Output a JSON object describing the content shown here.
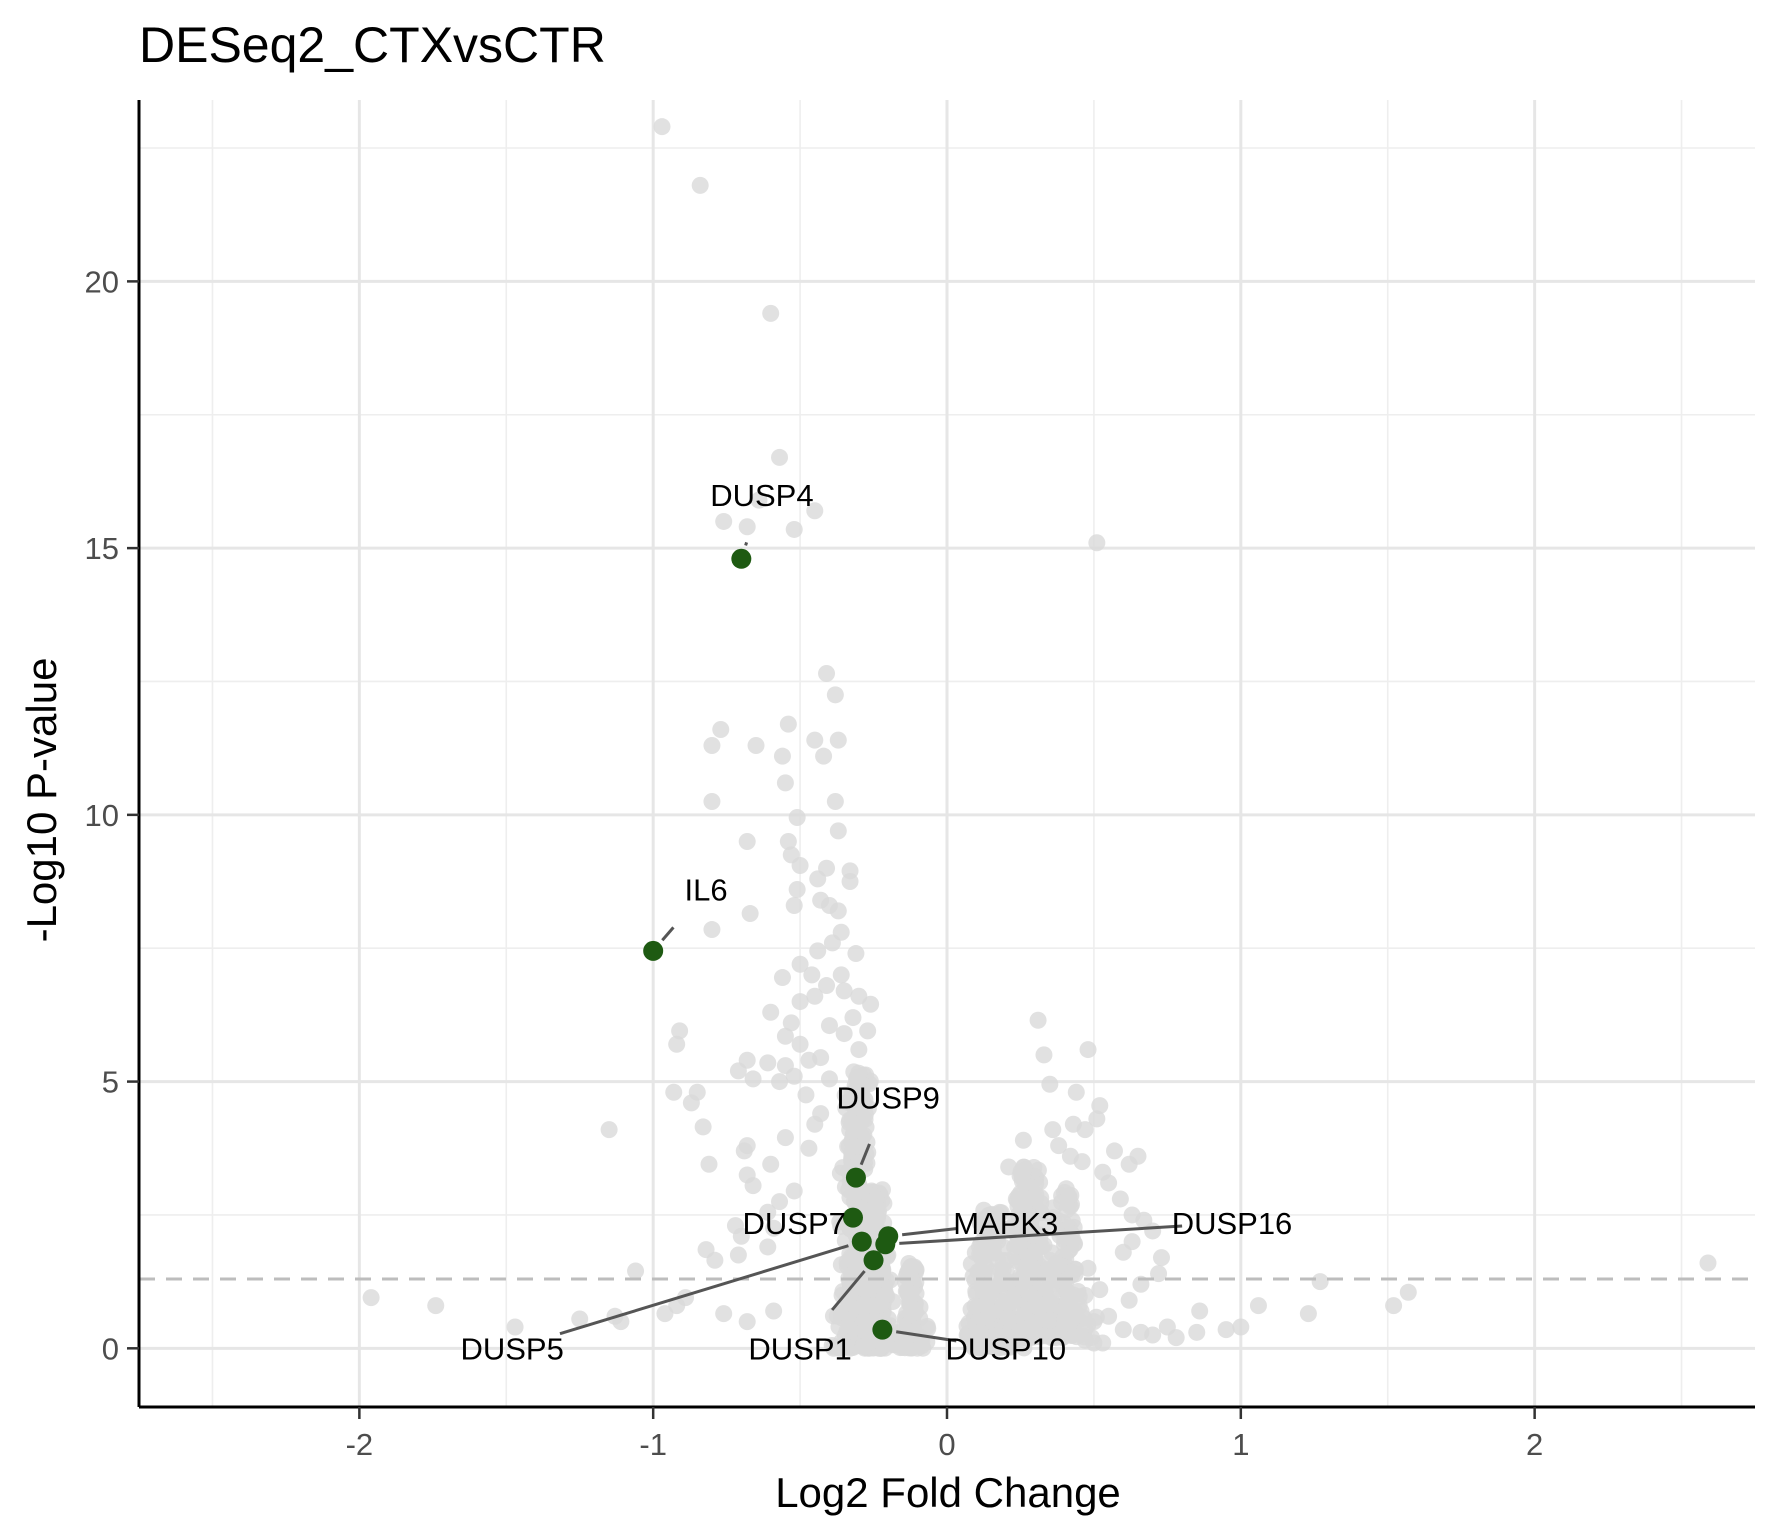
{
  "chart_data": {
    "type": "scatter",
    "title": "DESeq2_CTXvsCTR",
    "xlabel": "Log2 Fold Change",
    "ylabel": "-Log10 P-value",
    "xlim": [
      -2.75,
      2.75
    ],
    "ylim": [
      -1.1,
      23.4
    ],
    "x_ticks": [
      -2,
      -1,
      0,
      1,
      2
    ],
    "x_tick_labels": [
      "-2",
      "-1",
      "0",
      "1",
      "2"
    ],
    "y_ticks": [
      0,
      5,
      10,
      15,
      20
    ],
    "y_tick_labels": [
      "0",
      "5",
      "10",
      "15",
      "20"
    ],
    "grid": true,
    "threshold_line": {
      "y": 1.3,
      "style": "dashed"
    },
    "background_points": {
      "color": "#d9d9d9",
      "outliers": [
        [
          -0.97,
          22.9
        ],
        [
          -0.84,
          21.8
        ],
        [
          -0.6,
          19.4
        ],
        [
          -0.57,
          16.7
        ],
        [
          -0.64,
          15.9
        ],
        [
          -0.68,
          15.4
        ],
        [
          -0.76,
          15.5
        ],
        [
          -0.52,
          15.35
        ],
        [
          -0.45,
          15.7
        ],
        [
          0.51,
          15.1
        ],
        [
          -0.41,
          12.65
        ],
        [
          -0.38,
          12.25
        ],
        [
          -0.77,
          11.6
        ],
        [
          -0.54,
          11.7
        ],
        [
          -0.45,
          11.4
        ],
        [
          -0.37,
          11.4
        ],
        [
          -0.42,
          11.1
        ],
        [
          -0.56,
          11.1
        ],
        [
          -0.8,
          11.3
        ],
        [
          -0.65,
          11.3
        ],
        [
          -0.55,
          10.6
        ],
        [
          -0.8,
          10.25
        ],
        [
          -0.38,
          10.25
        ],
        [
          -0.51,
          9.95
        ],
        [
          -0.68,
          9.5
        ],
        [
          -0.54,
          9.5
        ],
        [
          -0.37,
          9.7
        ],
        [
          -0.53,
          9.25
        ],
        [
          -0.5,
          9.05
        ],
        [
          -0.41,
          9.0
        ],
        [
          -0.33,
          8.95
        ],
        [
          -0.44,
          8.8
        ],
        [
          -0.33,
          8.75
        ],
        [
          -0.51,
          8.6
        ],
        [
          -0.43,
          8.4
        ],
        [
          -0.4,
          8.3
        ],
        [
          -0.52,
          8.3
        ],
        [
          -0.37,
          8.2
        ],
        [
          -0.67,
          8.15
        ],
        [
          -0.8,
          7.85
        ],
        [
          -0.36,
          7.8
        ],
        [
          -0.39,
          7.6
        ],
        [
          -0.31,
          7.4
        ],
        [
          -0.44,
          7.45
        ],
        [
          -0.5,
          7.2
        ],
        [
          -0.56,
          6.95
        ],
        [
          -0.46,
          7.0
        ],
        [
          -0.36,
          7.0
        ],
        [
          -0.41,
          6.8
        ],
        [
          -0.35,
          6.7
        ],
        [
          -0.3,
          6.6
        ],
        [
          -0.45,
          6.6
        ],
        [
          -0.5,
          6.5
        ],
        [
          -0.26,
          6.45
        ],
        [
          -0.32,
          6.2
        ],
        [
          -0.6,
          6.3
        ],
        [
          -0.53,
          6.1
        ],
        [
          -0.4,
          6.05
        ],
        [
          -0.35,
          5.9
        ],
        [
          -0.27,
          5.95
        ],
        [
          -0.55,
          5.85
        ],
        [
          -0.91,
          5.95
        ],
        [
          -0.92,
          5.7
        ],
        [
          -0.5,
          5.7
        ],
        [
          -0.3,
          5.6
        ],
        [
          -0.68,
          5.4
        ],
        [
          -0.71,
          5.2
        ],
        [
          -0.61,
          5.35
        ],
        [
          -0.55,
          5.3
        ],
        [
          -0.47,
          5.4
        ],
        [
          -0.43,
          5.45
        ],
        [
          -0.52,
          5.1
        ],
        [
          -0.57,
          5.0
        ],
        [
          -0.66,
          5.05
        ],
        [
          -0.4,
          5.05
        ],
        [
          -0.48,
          4.75
        ],
        [
          -0.85,
          4.8
        ],
        [
          -0.93,
          4.8
        ],
        [
          -0.87,
          4.6
        ],
        [
          -0.43,
          4.4
        ],
        [
          -0.45,
          4.2
        ],
        [
          -1.15,
          4.1
        ],
        [
          -0.83,
          4.15
        ],
        [
          -0.55,
          3.95
        ],
        [
          -0.68,
          3.8
        ],
        [
          -0.47,
          3.75
        ],
        [
          -0.69,
          3.7
        ],
        [
          -0.81,
          3.45
        ],
        [
          -0.6,
          3.45
        ],
        [
          -0.68,
          3.25
        ],
        [
          -0.66,
          3.05
        ],
        [
          -0.52,
          2.95
        ],
        [
          -0.57,
          2.75
        ],
        [
          -0.61,
          2.55
        ],
        [
          -0.72,
          2.3
        ],
        [
          -0.59,
          2.25
        ],
        [
          -0.7,
          2.1
        ],
        [
          -0.61,
          1.9
        ],
        [
          -0.82,
          1.85
        ],
        [
          -0.71,
          1.75
        ],
        [
          -0.79,
          1.65
        ],
        [
          -1.06,
          1.45
        ],
        [
          -0.89,
          0.95
        ],
        [
          -0.92,
          0.8
        ],
        [
          -0.96,
          0.65
        ],
        [
          -0.76,
          0.65
        ],
        [
          -0.59,
          0.7
        ],
        [
          -1.96,
          0.95
        ],
        [
          -1.74,
          0.8
        ],
        [
          -1.47,
          0.4
        ],
        [
          -1.25,
          0.55
        ],
        [
          -1.13,
          0.6
        ],
        [
          -1.11,
          0.5
        ],
        [
          -0.68,
          0.5
        ],
        [
          0.31,
          6.15
        ],
        [
          0.33,
          5.5
        ],
        [
          0.48,
          5.6
        ],
        [
          0.35,
          4.95
        ],
        [
          0.44,
          4.8
        ],
        [
          0.52,
          4.55
        ],
        [
          0.51,
          4.3
        ],
        [
          0.47,
          4.1
        ],
        [
          0.43,
          4.2
        ],
        [
          0.36,
          4.1
        ],
        [
          0.26,
          3.9
        ],
        [
          0.38,
          3.8
        ],
        [
          0.42,
          3.6
        ],
        [
          0.57,
          3.7
        ],
        [
          0.62,
          3.45
        ],
        [
          0.65,
          3.6
        ],
        [
          0.53,
          3.3
        ],
        [
          0.21,
          3.4
        ],
        [
          0.46,
          3.5
        ],
        [
          0.55,
          3.1
        ],
        [
          0.59,
          2.8
        ],
        [
          0.63,
          2.5
        ],
        [
          0.67,
          2.4
        ],
        [
          0.7,
          2.2
        ],
        [
          0.63,
          2.0
        ],
        [
          0.6,
          1.8
        ],
        [
          0.73,
          1.7
        ],
        [
          0.72,
          1.4
        ],
        [
          0.66,
          1.2
        ],
        [
          0.62,
          0.9
        ],
        [
          0.55,
          0.6
        ],
        [
          0.6,
          0.35
        ],
        [
          0.66,
          0.3
        ],
        [
          0.7,
          0.25
        ],
        [
          0.75,
          0.4
        ],
        [
          0.78,
          0.2
        ],
        [
          0.86,
          0.7
        ],
        [
          0.85,
          0.3
        ],
        [
          0.95,
          0.35
        ],
        [
          1.0,
          0.4
        ],
        [
          1.06,
          0.8
        ],
        [
          1.23,
          0.65
        ],
        [
          1.27,
          1.25
        ],
        [
          1.52,
          0.8
        ],
        [
          1.57,
          1.05
        ],
        [
          2.59,
          1.6
        ],
        [
          0.23,
          1.9
        ],
        [
          0.3,
          1.8
        ],
        [
          0.48,
          1.5
        ],
        [
          0.52,
          1.1
        ],
        [
          0.45,
          0.8
        ],
        [
          0.5,
          0.5
        ],
        [
          0.47,
          0.15
        ],
        [
          0.5,
          0.1
        ],
        [
          0.53,
          0.1
        ],
        [
          0.43,
          1.0
        ]
      ],
      "dense_regions": [
        {
          "x_center": -0.3,
          "x_spread": 0.08,
          "y_min": 0,
          "y_max": 5.2,
          "n": 320
        },
        {
          "x_center": -0.24,
          "x_spread": 0.06,
          "y_min": 0,
          "y_max": 3.0,
          "n": 200
        },
        {
          "x_center": -0.12,
          "x_spread": 0.05,
          "y_min": 0,
          "y_max": 1.6,
          "n": 100
        },
        {
          "x_center": 0.15,
          "x_spread": 0.09,
          "y_min": 0,
          "y_max": 2.6,
          "n": 200
        },
        {
          "x_center": 0.28,
          "x_spread": 0.1,
          "y_min": 0.2,
          "y_max": 3.4,
          "n": 230
        },
        {
          "x_center": 0.4,
          "x_spread": 0.08,
          "y_min": 0.2,
          "y_max": 3.0,
          "n": 130
        }
      ]
    },
    "highlight_color": "#1e5a12",
    "highlighted_genes": [
      {
        "gene": "DUSP4",
        "x": -0.7,
        "y": 14.8,
        "label": [
          -0.63,
          16.0
        ]
      },
      {
        "gene": "IL6",
        "x": -1.0,
        "y": 7.45,
        "label": [
          -0.82,
          8.6
        ]
      },
      {
        "gene": "DUSP9",
        "x": -0.31,
        "y": 3.2,
        "label": [
          -0.2,
          4.7
        ]
      },
      {
        "gene": "DUSP7",
        "x": -0.32,
        "y": 2.45,
        "label": [
          -0.52,
          2.35
        ]
      },
      {
        "gene": "MAPK3",
        "x": -0.2,
        "y": 2.1,
        "label": [
          0.2,
          2.35
        ]
      },
      {
        "gene": "DUSP16",
        "x": -0.21,
        "y": 1.95,
        "label": [
          0.97,
          2.35
        ]
      },
      {
        "gene": "DUSP5",
        "x": -0.29,
        "y": 2.0,
        "label": [
          -1.48,
          0.0
        ]
      },
      {
        "gene": "DUSP1",
        "x": -0.25,
        "y": 1.65,
        "label": [
          -0.5,
          0.0
        ]
      },
      {
        "gene": "DUSP10",
        "x": -0.22,
        "y": 0.35,
        "label": [
          0.2,
          0.0
        ]
      }
    ]
  }
}
